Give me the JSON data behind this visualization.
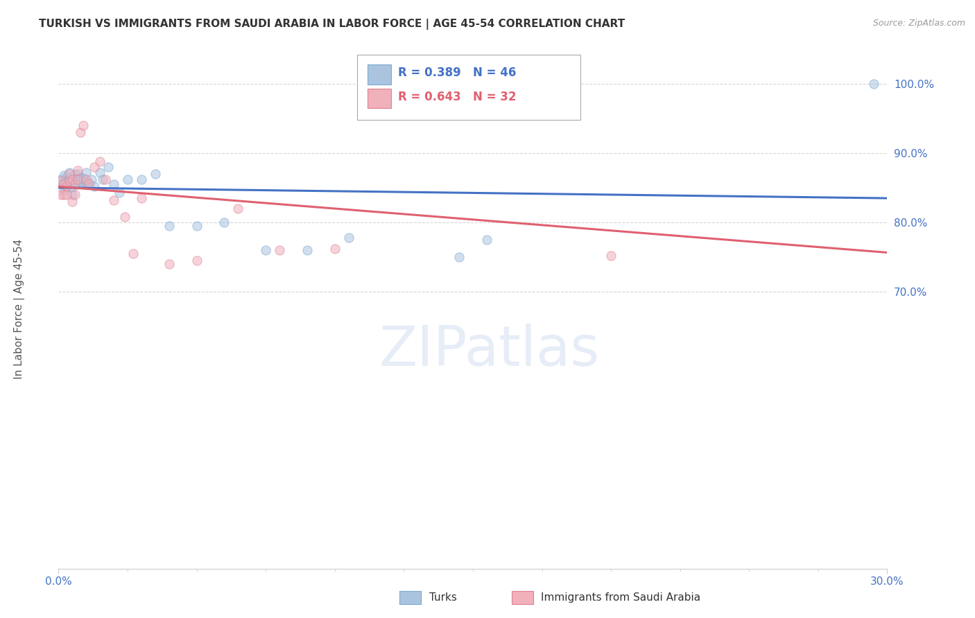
{
  "title": "TURKISH VS IMMIGRANTS FROM SAUDI ARABIA IN LABOR FORCE | AGE 45-54 CORRELATION CHART",
  "source": "Source: ZipAtlas.com",
  "ylabel": "In Labor Force | Age 45-54",
  "xlim": [
    0.0,
    0.3
  ],
  "ylim": [
    0.3,
    1.05
  ],
  "xtick_positions": [
    0.0,
    0.3
  ],
  "xtick_labels": [
    "0.0%",
    "30.0%"
  ],
  "yticks": [
    0.7,
    0.8,
    0.9,
    1.0
  ],
  "ytick_labels": [
    "70.0%",
    "80.0%",
    "90.0%",
    "100.0%"
  ],
  "turks_x": [
    0.001,
    0.001,
    0.002,
    0.002,
    0.002,
    0.003,
    0.003,
    0.003,
    0.004,
    0.004,
    0.004,
    0.005,
    0.005,
    0.005,
    0.006,
    0.006,
    0.006,
    0.007,
    0.007,
    0.007,
    0.008,
    0.008,
    0.009,
    0.009,
    0.01,
    0.01,
    0.011,
    0.012,
    0.013,
    0.015,
    0.016,
    0.018,
    0.02,
    0.022,
    0.025,
    0.03,
    0.035,
    0.04,
    0.05,
    0.06,
    0.075,
    0.09,
    0.105,
    0.145,
    0.155,
    0.295
  ],
  "turks_y": [
    0.855,
    0.862,
    0.847,
    0.858,
    0.868,
    0.853,
    0.86,
    0.866,
    0.858,
    0.864,
    0.872,
    0.84,
    0.851,
    0.858,
    0.856,
    0.862,
    0.869,
    0.855,
    0.862,
    0.87,
    0.858,
    0.865,
    0.856,
    0.864,
    0.858,
    0.872,
    0.856,
    0.862,
    0.852,
    0.872,
    0.862,
    0.88,
    0.855,
    0.843,
    0.862,
    0.862,
    0.87,
    0.795,
    0.795,
    0.8,
    0.76,
    0.76,
    0.778,
    0.75,
    0.775,
    1.0
  ],
  "saudi_x": [
    0.001,
    0.001,
    0.002,
    0.002,
    0.003,
    0.003,
    0.004,
    0.004,
    0.005,
    0.005,
    0.006,
    0.006,
    0.007,
    0.007,
    0.008,
    0.009,
    0.01,
    0.011,
    0.013,
    0.015,
    0.017,
    0.02,
    0.024,
    0.027,
    0.03,
    0.04,
    0.05,
    0.065,
    0.08,
    0.1,
    0.145,
    0.2
  ],
  "saudi_y": [
    0.84,
    0.86,
    0.84,
    0.855,
    0.84,
    0.852,
    0.86,
    0.87,
    0.83,
    0.862,
    0.84,
    0.855,
    0.862,
    0.875,
    0.93,
    0.94,
    0.862,
    0.856,
    0.88,
    0.888,
    0.862,
    0.832,
    0.808,
    0.755,
    0.835,
    0.74,
    0.745,
    0.82,
    0.76,
    0.762,
    1.0,
    0.752
  ],
  "turks_color": "#aac4e0",
  "turks_edge_color": "#7aaace",
  "saudi_color": "#f0b0bc",
  "saudi_edge_color": "#e08090",
  "turks_line_color": "#4472c4",
  "saudi_line_color": "#e06070",
  "turks_R": 0.389,
  "turks_N": 46,
  "saudi_R": 0.643,
  "saudi_N": 32,
  "legend_turks": "Turks",
  "legend_saudi": "Immigrants from Saudi Arabia",
  "background_color": "#ffffff",
  "grid_color": "#cccccc",
  "title_color": "#333333",
  "source_color": "#999999",
  "axis_label_color": "#555555",
  "tick_color": "#4472c4",
  "marker_size": 90,
  "marker_alpha": 0.55,
  "watermark_text": "ZIPatlas",
  "watermark_color": "#c8d8ee",
  "watermark_alpha": 0.45
}
